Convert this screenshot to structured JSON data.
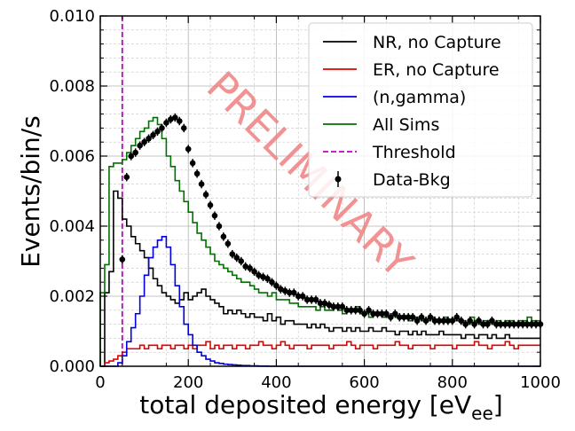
{
  "chart_data": {
    "type": "line",
    "xlabel_main": "total deposited energy [eV",
    "xlabel_sub": "ee",
    "xlabel_end": "]",
    "ylabel": "Events/bin/s",
    "xlim": [
      0,
      1000
    ],
    "ylim": [
      0,
      0.01
    ],
    "x_ticks": [
      0,
      200,
      400,
      600,
      800,
      1000
    ],
    "x_tick_labels": [
      "0",
      "200",
      "400",
      "600",
      "800",
      "1000"
    ],
    "y_ticks": [
      0,
      0.002,
      0.004,
      0.006,
      0.008,
      0.01
    ],
    "y_tick_labels": [
      "0.000",
      "0.002",
      "0.004",
      "0.006",
      "0.008",
      "0.010"
    ],
    "grid": true,
    "legend_position": "top-right",
    "watermark": "PRELIMINARY",
    "threshold": {
      "name": "Threshold",
      "x": 50,
      "color": "#bf00bf"
    },
    "data_points": {
      "name": "Data-Bkg",
      "color": "#000000",
      "x": [
        50,
        60,
        70,
        80,
        90,
        100,
        110,
        120,
        130,
        140,
        150,
        160,
        170,
        180,
        190,
        200,
        210,
        220,
        230,
        240,
        250,
        260,
        270,
        280,
        290,
        300,
        310,
        320,
        330,
        340,
        350,
        360,
        370,
        380,
        390,
        400,
        410,
        420,
        430,
        440,
        450,
        460,
        470,
        480,
        490,
        500,
        510,
        520,
        530,
        540,
        550,
        560,
        570,
        580,
        590,
        600,
        610,
        620,
        630,
        640,
        650,
        660,
        670,
        680,
        690,
        700,
        710,
        720,
        730,
        740,
        750,
        760,
        770,
        780,
        790,
        800,
        810,
        820,
        830,
        840,
        850,
        860,
        870,
        880,
        890,
        900,
        910,
        920,
        930,
        940,
        950,
        960,
        970,
        980,
        990,
        1000
      ],
      "y": [
        0.00305,
        0.0054,
        0.006,
        0.0061,
        0.0063,
        0.0064,
        0.0065,
        0.0066,
        0.0067,
        0.0068,
        0.00695,
        0.00705,
        0.0071,
        0.007,
        0.0068,
        0.0062,
        0.0058,
        0.0055,
        0.0052,
        0.0049,
        0.0046,
        0.0043,
        0.004,
        0.0037,
        0.0035,
        0.0032,
        0.0031,
        0.003,
        0.00285,
        0.0028,
        0.0027,
        0.0026,
        0.00255,
        0.0025,
        0.0024,
        0.0023,
        0.0022,
        0.00215,
        0.0021,
        0.0021,
        0.002,
        0.002,
        0.0019,
        0.0019,
        0.0019,
        0.0018,
        0.0018,
        0.00175,
        0.0017,
        0.0017,
        0.0017,
        0.0016,
        0.0016,
        0.0016,
        0.0016,
        0.0015,
        0.0016,
        0.0015,
        0.0015,
        0.0015,
        0.0015,
        0.0014,
        0.0015,
        0.0014,
        0.0014,
        0.0014,
        0.0014,
        0.0013,
        0.0014,
        0.0013,
        0.0014,
        0.0013,
        0.0013,
        0.0013,
        0.0013,
        0.0013,
        0.0014,
        0.0013,
        0.0012,
        0.0013,
        0.0012,
        0.0013,
        0.0012,
        0.0012,
        0.0013,
        0.0012,
        0.0012,
        0.0012,
        0.0012,
        0.0012,
        0.0012,
        0.0012,
        0.0012,
        0.0012,
        0.0012,
        0.0012
      ],
      "err": 0.00012
    },
    "series": [
      {
        "name": "NR, no Capture",
        "color": "#000000",
        "bin_width": 10,
        "bin_edges_start": 0,
        "values": [
          0.0,
          0.0021,
          0.0027,
          0.005,
          0.0048,
          0.0042,
          0.004,
          0.0037,
          0.0035,
          0.0033,
          0.0031,
          0.0028,
          0.0025,
          0.0023,
          0.0021,
          0.002,
          0.0019,
          0.0018,
          0.0019,
          0.0021,
          0.0019,
          0.002,
          0.0021,
          0.0022,
          0.002,
          0.0019,
          0.0018,
          0.0017,
          0.0015,
          0.0016,
          0.0015,
          0.0016,
          0.0015,
          0.0014,
          0.0015,
          0.0014,
          0.0014,
          0.0013,
          0.0015,
          0.0013,
          0.0014,
          0.0012,
          0.0013,
          0.0013,
          0.0012,
          0.0012,
          0.0012,
          0.0011,
          0.0012,
          0.0011,
          0.0012,
          0.0011,
          0.001,
          0.0011,
          0.0011,
          0.001,
          0.0011,
          0.001,
          0.0011,
          0.001,
          0.001,
          0.0011,
          0.001,
          0.001,
          0.0011,
          0.001,
          0.001,
          0.0009,
          0.001,
          0.001,
          0.0009,
          0.001,
          0.0009,
          0.001,
          0.0009,
          0.0009,
          0.0009,
          0.001,
          0.0009,
          0.0009,
          0.0009,
          0.0009,
          0.0008,
          0.0009,
          0.0009,
          0.0008,
          0.0009,
          0.0009,
          0.0008,
          0.0009,
          0.0008,
          0.0008,
          0.0009,
          0.0008,
          0.0008,
          0.0008,
          0.0008,
          0.0008,
          0.0008,
          0.0008
        ]
      },
      {
        "name": "ER, no Capture",
        "color": "#e00000",
        "bin_width": 10,
        "bin_edges_start": 0,
        "values": [
          0.0,
          0.0001,
          0.00015,
          0.0002,
          0.0003,
          0.0004,
          0.0005,
          0.0005,
          0.0005,
          0.0006,
          0.0005,
          0.0006,
          0.0006,
          0.0005,
          0.0006,
          0.0006,
          0.0005,
          0.0006,
          0.0006,
          0.0005,
          0.0006,
          0.0005,
          0.0006,
          0.0006,
          0.0007,
          0.0005,
          0.0006,
          0.0005,
          0.0006,
          0.0006,
          0.0005,
          0.0006,
          0.0006,
          0.0005,
          0.0006,
          0.0006,
          0.0007,
          0.0006,
          0.0006,
          0.0005,
          0.0006,
          0.0007,
          0.0006,
          0.0005,
          0.0006,
          0.0006,
          0.0006,
          0.0005,
          0.0006,
          0.0006,
          0.0006,
          0.0006,
          0.0005,
          0.0006,
          0.0006,
          0.0006,
          0.0007,
          0.0006,
          0.0005,
          0.0006,
          0.0006,
          0.0006,
          0.0005,
          0.0006,
          0.0006,
          0.0006,
          0.0006,
          0.0007,
          0.0006,
          0.0006,
          0.0005,
          0.0006,
          0.0006,
          0.0006,
          0.0006,
          0.0005,
          0.0006,
          0.0006,
          0.0006,
          0.0006,
          0.0005,
          0.0006,
          0.0006,
          0.0006,
          0.0006,
          0.0007,
          0.0006,
          0.0006,
          0.0005,
          0.0006,
          0.0006,
          0.0006,
          0.0007,
          0.0006,
          0.0005,
          0.0006,
          0.0006,
          0.0006,
          0.0006,
          0.0006
        ]
      },
      {
        "name": "(n,gamma)",
        "color": "#0000e0",
        "bin_width": 10,
        "bin_edges_start": 0,
        "values": [
          0.0,
          0.0,
          0.0,
          0.0,
          0.0001,
          0.0003,
          0.0007,
          0.0011,
          0.0015,
          0.002,
          0.0026,
          0.0031,
          0.0034,
          0.0036,
          0.0037,
          0.0034,
          0.0029,
          0.0023,
          0.0017,
          0.0012,
          0.0009,
          0.0006,
          0.0004,
          0.0003,
          0.0002,
          0.00015,
          0.0001,
          8e-05,
          6e-05,
          5e-05,
          4e-05,
          3e-05,
          2e-05,
          2e-05,
          1e-05,
          1e-05,
          5e-06,
          5e-06,
          0.0,
          0.0,
          0.0,
          0.0,
          0.0,
          0.0,
          0.0,
          0.0,
          0.0,
          0.0,
          0.0,
          0.0,
          0.0,
          0.0,
          0.0,
          0.0,
          0.0,
          0.0,
          0.0,
          0.0,
          0.0,
          0.0,
          0.0,
          0.0,
          0.0,
          0.0,
          0.0,
          0.0,
          0.0,
          0.0,
          0.0,
          0.0,
          0.0,
          0.0,
          0.0,
          0.0,
          0.0,
          0.0,
          0.0,
          0.0,
          0.0,
          0.0,
          0.0,
          0.0,
          0.0,
          0.0,
          0.0,
          0.0,
          0.0,
          0.0,
          0.0,
          0.0,
          0.0,
          0.0,
          0.0,
          0.0,
          0.0,
          0.0,
          0.0,
          0.0,
          0.0,
          0.0
        ]
      },
      {
        "name": "All Sims",
        "color": "#007000",
        "bin_width": 10,
        "bin_edges_start": 0,
        "values": [
          0.0021,
          0.0029,
          0.0057,
          0.0058,
          0.0058,
          0.0059,
          0.0061,
          0.0063,
          0.0065,
          0.0067,
          0.0068,
          0.007,
          0.0071,
          0.0069,
          0.0065,
          0.006,
          0.0057,
          0.0053,
          0.005,
          0.0047,
          0.0044,
          0.0041,
          0.0038,
          0.0036,
          0.0034,
          0.0032,
          0.003,
          0.0029,
          0.0028,
          0.0027,
          0.0026,
          0.0025,
          0.0024,
          0.0024,
          0.0023,
          0.0022,
          0.0021,
          0.0021,
          0.002,
          0.0021,
          0.0019,
          0.0019,
          0.0019,
          0.0018,
          0.0018,
          0.0017,
          0.0017,
          0.0017,
          0.0017,
          0.0016,
          0.0017,
          0.0016,
          0.0016,
          0.0017,
          0.0016,
          0.0015,
          0.0016,
          0.0016,
          0.0017,
          0.0015,
          0.0015,
          0.0014,
          0.0015,
          0.0015,
          0.0014,
          0.0014,
          0.0015,
          0.0014,
          0.0014,
          0.0014,
          0.0013,
          0.0014,
          0.0014,
          0.0013,
          0.0013,
          0.0014,
          0.0013,
          0.0013,
          0.0014,
          0.0013,
          0.0013,
          0.0013,
          0.0013,
          0.0012,
          0.0014,
          0.0013,
          0.0012,
          0.0013,
          0.0013,
          0.0012,
          0.0013,
          0.0012,
          0.0013,
          0.0013,
          0.0012,
          0.0013,
          0.0013,
          0.0014,
          0.0013,
          0.0013
        ]
      }
    ],
    "legend": [
      {
        "label": "NR, no Capture",
        "kind": "line",
        "color": "#000000"
      },
      {
        "label": "ER, no Capture",
        "kind": "line",
        "color": "#e00000"
      },
      {
        "label": "(n,gamma)",
        "kind": "line",
        "color": "#0000e0"
      },
      {
        "label": "All Sims",
        "kind": "line",
        "color": "#007000"
      },
      {
        "label": "Threshold",
        "kind": "dashed",
        "color": "#bf00bf"
      },
      {
        "label": "Data-Bkg",
        "kind": "errorbar",
        "color": "#000000"
      }
    ]
  }
}
